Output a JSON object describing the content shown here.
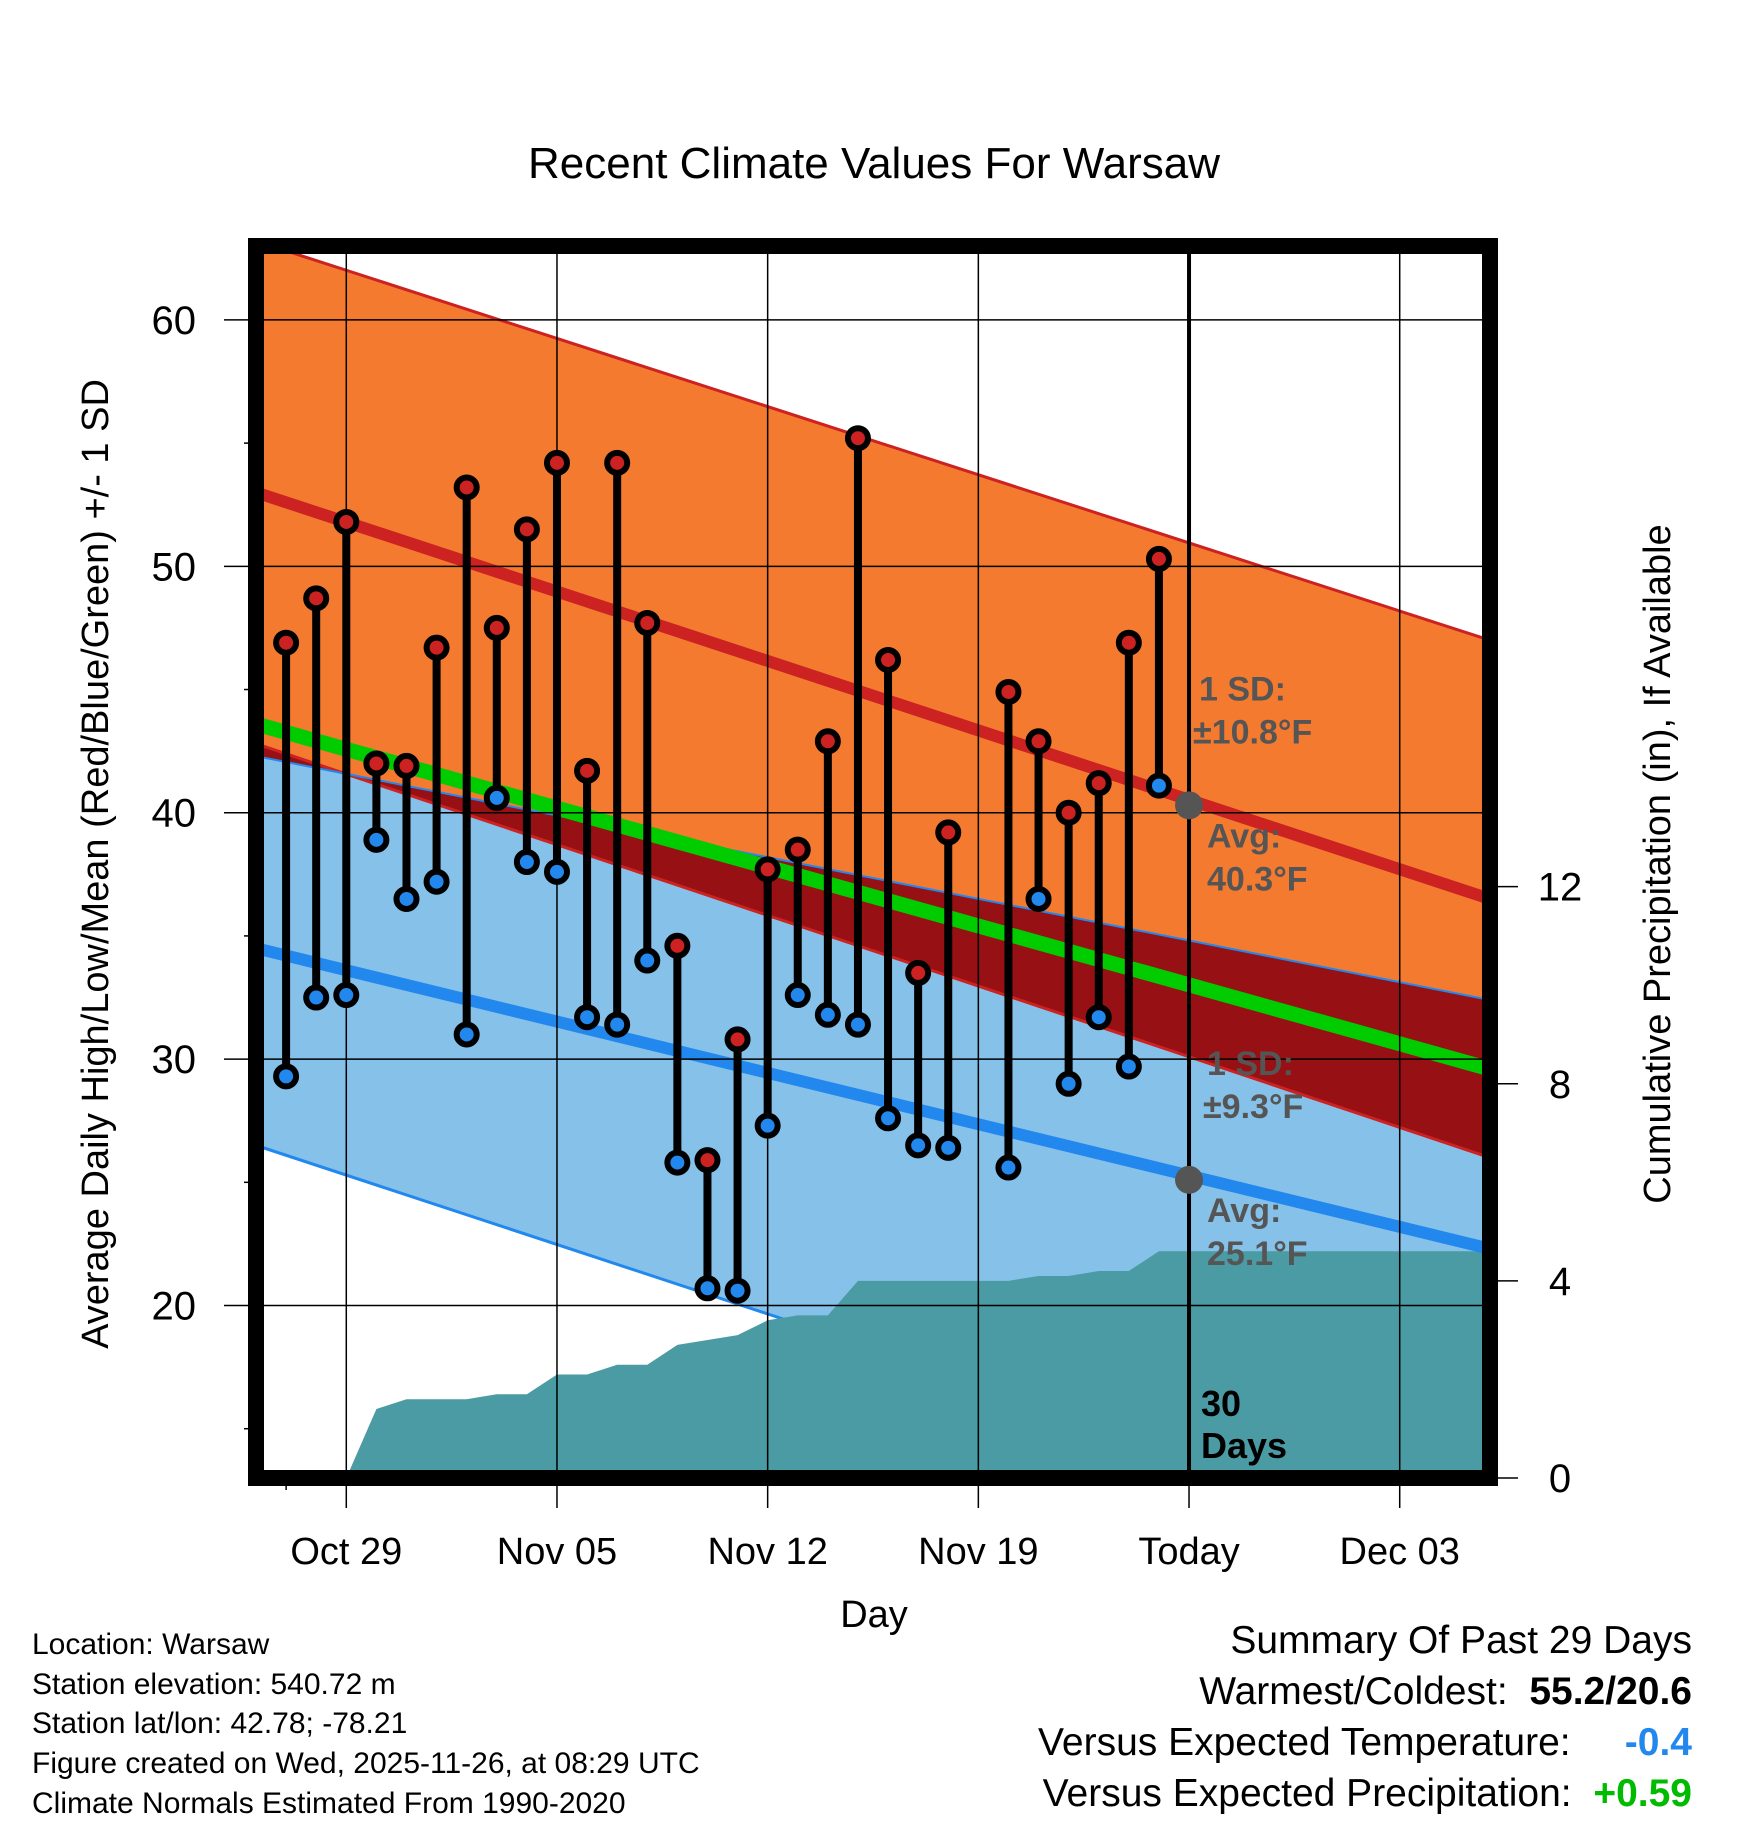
{
  "chart_data": {
    "type": "line",
    "title": "Recent Climate Values For Warsaw",
    "xlabel": "Day",
    "ylabel": "Average Daily High/Low/Mean (Red/Blue/Green) +/- 1 SD",
    "y2label": "Cumulative Precipitation (in), If Available",
    "ylim": [
      13,
      63
    ],
    "y2lim": [
      0,
      25
    ],
    "yticks": [
      20,
      30,
      40,
      50,
      60
    ],
    "y2ticks": [
      0,
      4,
      8,
      12
    ],
    "xlim": [
      -3,
      38
    ],
    "x_ticks": [
      {
        "day": 0,
        "label": "Oct 29"
      },
      {
        "day": 7,
        "label": "Nov 05"
      },
      {
        "day": 14,
        "label": "Nov 12"
      },
      {
        "day": 21,
        "label": "Nov 19"
      },
      {
        "day": 28,
        "label": "Today"
      },
      {
        "day": 35,
        "label": "Dec 03"
      }
    ],
    "today_day": 28,
    "normals": {
      "high_avg_start": 53.0,
      "high_avg_end": 36.5,
      "high_sd_upper_start": 63.2,
      "high_sd_upper_end": 47.0,
      "high_sd_lower_start": 42.8,
      "high_sd_lower_end": 26.0,
      "low_avg_start": 34.5,
      "low_avg_end": 22.3,
      "low_sd_upper_start": 42.3,
      "low_sd_upper_end": 32.4,
      "low_sd_lower_start": 26.5,
      "low_sd_lower_end": 10.0,
      "mean_avg_start": 43.6,
      "mean_avg_end": 29.6
    },
    "series": [
      {
        "name": "Daily High",
        "color": "#cc2222",
        "x": [
          -2,
          -1,
          0,
          1,
          2,
          3,
          4,
          5,
          6,
          7,
          8,
          9,
          10,
          11,
          12,
          13,
          14,
          15,
          16,
          17,
          18,
          19,
          20,
          21,
          22,
          23,
          24,
          25,
          26,
          27
        ],
        "values": [
          46.9,
          48.7,
          51.8,
          42.0,
          41.9,
          46.7,
          53.2,
          47.5,
          51.5,
          54.2,
          41.7,
          54.2,
          47.7,
          34.6,
          25.9,
          30.8,
          37.7,
          38.5,
          42.9,
          55.2,
          46.2,
          33.5,
          39.2,
          null,
          44.9,
          42.9,
          40.0,
          41.2,
          46.9,
          50.3
        ]
      },
      {
        "name": "Daily Low",
        "color": "#2288ee",
        "x": [
          -2,
          -1,
          0,
          1,
          2,
          3,
          4,
          5,
          6,
          7,
          8,
          9,
          10,
          11,
          12,
          13,
          14,
          15,
          16,
          17,
          18,
          19,
          20,
          21,
          22,
          23,
          24,
          25,
          26,
          27
        ],
        "values": [
          29.3,
          32.5,
          32.6,
          38.9,
          36.5,
          37.2,
          31.0,
          40.6,
          38.0,
          37.6,
          31.7,
          31.4,
          34.0,
          25.8,
          20.7,
          20.6,
          27.3,
          32.6,
          31.8,
          31.4,
          27.6,
          26.5,
          26.4,
          null,
          25.6,
          36.5,
          29.0,
          31.7,
          29.7,
          41.1
        ]
      }
    ],
    "precipitation": {
      "x": [
        0,
        1,
        2,
        3,
        4,
        5,
        6,
        7,
        8,
        9,
        10,
        11,
        12,
        13,
        14,
        15,
        16,
        17,
        18,
        19,
        20,
        21,
        22,
        23,
        24,
        25,
        26,
        27,
        28,
        38
      ],
      "values": [
        0,
        1.4,
        1.6,
        1.6,
        1.6,
        1.7,
        1.7,
        2.1,
        2.1,
        2.3,
        2.3,
        2.7,
        2.8,
        2.9,
        3.2,
        3.3,
        3.3,
        4.0,
        4.0,
        4.0,
        4.0,
        4.0,
        4.0,
        4.1,
        4.1,
        4.2,
        4.2,
        4.6,
        4.6,
        4.6
      ]
    },
    "annotations": {
      "high_sd_label": "1 SD:",
      "high_sd_value": "±10.8°F",
      "high_avg_label": "Avg:",
      "high_avg_value": "40.3°F",
      "high_avg_today": 40.3,
      "low_sd_label": "1 SD:",
      "low_sd_value": "±9.3°F",
      "low_avg_label": "Avg:",
      "low_avg_value": "25.1°F",
      "low_avg_today": 25.1,
      "days_number": "30",
      "days_word": "Days"
    },
    "colors": {
      "high_band": "#f47a30",
      "high_line": "#cc2222",
      "low_band": "#85c1e8",
      "low_line": "#2288ee",
      "overlap_band": "#971014",
      "mean_line": "#00cc00",
      "precip": "#4a9ba3",
      "annotation": "#555555"
    }
  },
  "info": {
    "location": "Location: Warsaw",
    "elevation": "Station elevation: 540.72 m",
    "latlon": "Station lat/lon: 42.78; -78.21",
    "created": "Figure created on Wed, 2025-11-26, at 08:29 UTC",
    "normals": "Climate Normals Estimated From 1990-2020"
  },
  "summary": {
    "title": "Summary Of Past 29 Days",
    "warmest_label": "Warmest/Coldest:",
    "warmest_value": "55.2/20.6",
    "temp_label": "Versus Expected Temperature:",
    "temp_value": "-0.4",
    "temp_color": "#2288ee",
    "precip_label": "Versus Expected Precipitation:",
    "precip_value": "+0.59",
    "precip_color": "#00bb00"
  }
}
